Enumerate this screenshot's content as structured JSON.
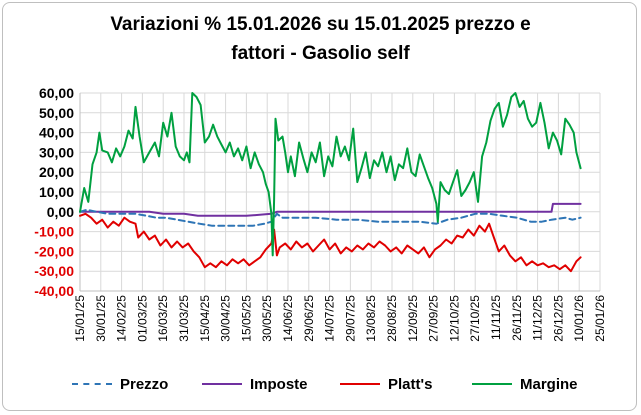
{
  "chart_data": {
    "type": "line",
    "title_line1": "Variazioni % 15.01.2026 su 15.01.2025 prezzo e",
    "title_line2": "fattori - Gasolio self",
    "yticks": [
      "60,00",
      "50,00",
      "40,00",
      "30,00",
      "20,00",
      "10,00",
      "0,00",
      "-10,00",
      "-20,00",
      "-30,00",
      "-40,00"
    ],
    "ylim": [
      -40,
      60
    ],
    "xticks": [
      "15/01/25",
      "30/01/25",
      "14/02/25",
      "01/03/25",
      "16/03/25",
      "31/03/25",
      "15/04/25",
      "30/04/25",
      "15/05/25",
      "30/05/25",
      "14/06/25",
      "29/06/25",
      "14/07/25",
      "29/07/25",
      "13/08/25",
      "28/08/25",
      "12/09/25",
      "27/09/25",
      "12/10/25",
      "27/10/25",
      "11/11/25",
      "26/11/25",
      "11/12/25",
      "26/12/25",
      "10/01/26",
      "25/01/26"
    ],
    "x_range_days": [
      0,
      375
    ],
    "grid": true,
    "series": [
      {
        "name": "Prezzo",
        "color": "#2e75b6",
        "style": "dashed",
        "points": [
          [
            0,
            0
          ],
          [
            5,
            1
          ],
          [
            12,
            0
          ],
          [
            20,
            -1
          ],
          [
            30,
            -1
          ],
          [
            40,
            -1
          ],
          [
            48,
            -2
          ],
          [
            55,
            -3
          ],
          [
            62,
            -3
          ],
          [
            70,
            -4
          ],
          [
            78,
            -5
          ],
          [
            86,
            -6
          ],
          [
            95,
            -7
          ],
          [
            105,
            -7
          ],
          [
            115,
            -7
          ],
          [
            125,
            -7
          ],
          [
            133,
            -6
          ],
          [
            138,
            -5
          ],
          [
            142,
            -1
          ],
          [
            146,
            -3
          ],
          [
            155,
            -3
          ],
          [
            170,
            -3
          ],
          [
            185,
            -4
          ],
          [
            200,
            -4
          ],
          [
            215,
            -5
          ],
          [
            230,
            -5
          ],
          [
            245,
            -5
          ],
          [
            257,
            -6
          ],
          [
            265,
            -4
          ],
          [
            275,
            -3
          ],
          [
            285,
            -1
          ],
          [
            295,
            -1
          ],
          [
            305,
            -2
          ],
          [
            315,
            -3
          ],
          [
            325,
            -5
          ],
          [
            333,
            -5
          ],
          [
            340,
            -4
          ],
          [
            350,
            -3
          ],
          [
            355,
            -4
          ],
          [
            361,
            -3
          ]
        ]
      },
      {
        "name": "Imposte",
        "color": "#7030a0",
        "style": "solid",
        "points": [
          [
            0,
            0
          ],
          [
            30,
            0
          ],
          [
            50,
            0
          ],
          [
            60,
            -1
          ],
          [
            75,
            -1
          ],
          [
            85,
            -2
          ],
          [
            100,
            -2
          ],
          [
            120,
            -2
          ],
          [
            138,
            -1
          ],
          [
            142,
            0
          ],
          [
            180,
            0
          ],
          [
            220,
            0
          ],
          [
            260,
            0
          ],
          [
            290,
            0
          ],
          [
            310,
            0
          ],
          [
            330,
            0
          ],
          [
            340,
            0
          ],
          [
            341,
            4
          ],
          [
            355,
            4
          ],
          [
            361,
            4
          ]
        ]
      },
      {
        "name": "Platt's",
        "color": "#e00000",
        "style": "solid",
        "points": [
          [
            0,
            -2
          ],
          [
            4,
            -1
          ],
          [
            8,
            -3
          ],
          [
            12,
            -6
          ],
          [
            16,
            -4
          ],
          [
            20,
            -8
          ],
          [
            24,
            -5
          ],
          [
            28,
            -7
          ],
          [
            32,
            -3
          ],
          [
            36,
            -5
          ],
          [
            40,
            -6
          ],
          [
            42,
            -13
          ],
          [
            46,
            -10
          ],
          [
            50,
            -14
          ],
          [
            54,
            -12
          ],
          [
            58,
            -17
          ],
          [
            62,
            -14
          ],
          [
            66,
            -18
          ],
          [
            70,
            -15
          ],
          [
            74,
            -18
          ],
          [
            78,
            -16
          ],
          [
            82,
            -20
          ],
          [
            86,
            -23
          ],
          [
            90,
            -28
          ],
          [
            94,
            -26
          ],
          [
            98,
            -28
          ],
          [
            102,
            -25
          ],
          [
            106,
            -27
          ],
          [
            110,
            -24
          ],
          [
            114,
            -26
          ],
          [
            118,
            -24
          ],
          [
            122,
            -27
          ],
          [
            126,
            -25
          ],
          [
            130,
            -23
          ],
          [
            134,
            -19
          ],
          [
            138,
            -16
          ],
          [
            140,
            -9
          ],
          [
            142,
            -22
          ],
          [
            144,
            -18
          ],
          [
            148,
            -16
          ],
          [
            152,
            -19
          ],
          [
            156,
            -15
          ],
          [
            160,
            -18
          ],
          [
            164,
            -16
          ],
          [
            168,
            -20
          ],
          [
            172,
            -17
          ],
          [
            176,
            -14
          ],
          [
            180,
            -19
          ],
          [
            184,
            -16
          ],
          [
            188,
            -21
          ],
          [
            192,
            -18
          ],
          [
            196,
            -20
          ],
          [
            200,
            -17
          ],
          [
            204,
            -19
          ],
          [
            208,
            -16
          ],
          [
            212,
            -18
          ],
          [
            216,
            -15
          ],
          [
            220,
            -17
          ],
          [
            224,
            -20
          ],
          [
            228,
            -18
          ],
          [
            232,
            -21
          ],
          [
            236,
            -17
          ],
          [
            240,
            -19
          ],
          [
            244,
            -21
          ],
          [
            248,
            -18
          ],
          [
            252,
            -23
          ],
          [
            256,
            -19
          ],
          [
            260,
            -17
          ],
          [
            264,
            -14
          ],
          [
            268,
            -16
          ],
          [
            272,
            -12
          ],
          [
            276,
            -13
          ],
          [
            280,
            -9
          ],
          [
            284,
            -12
          ],
          [
            288,
            -7
          ],
          [
            292,
            -10
          ],
          [
            295,
            -6
          ],
          [
            298,
            -12
          ],
          [
            302,
            -20
          ],
          [
            306,
            -17
          ],
          [
            310,
            -22
          ],
          [
            314,
            -25
          ],
          [
            318,
            -23
          ],
          [
            322,
            -27
          ],
          [
            326,
            -25
          ],
          [
            330,
            -27
          ],
          [
            334,
            -26
          ],
          [
            338,
            -28
          ],
          [
            342,
            -27
          ],
          [
            346,
            -29
          ],
          [
            350,
            -27
          ],
          [
            354,
            -30
          ],
          [
            358,
            -25
          ],
          [
            361,
            -23
          ]
        ]
      },
      {
        "name": "Margine",
        "color": "#00a040",
        "style": "solid",
        "points": [
          [
            0,
            0
          ],
          [
            3,
            12
          ],
          [
            6,
            5
          ],
          [
            9,
            24
          ],
          [
            12,
            30
          ],
          [
            14,
            40
          ],
          [
            16,
            31
          ],
          [
            20,
            30
          ],
          [
            23,
            25
          ],
          [
            26,
            32
          ],
          [
            29,
            28
          ],
          [
            32,
            33
          ],
          [
            35,
            41
          ],
          [
            38,
            37
          ],
          [
            40,
            53
          ],
          [
            43,
            38
          ],
          [
            46,
            25
          ],
          [
            50,
            30
          ],
          [
            54,
            35
          ],
          [
            57,
            28
          ],
          [
            60,
            45
          ],
          [
            63,
            38
          ],
          [
            66,
            50
          ],
          [
            69,
            33
          ],
          [
            72,
            28
          ],
          [
            75,
            26
          ],
          [
            77,
            30
          ],
          [
            79,
            25
          ],
          [
            81,
            60
          ],
          [
            84,
            58
          ],
          [
            87,
            54
          ],
          [
            90,
            35
          ],
          [
            93,
            38
          ],
          [
            96,
            44
          ],
          [
            99,
            38
          ],
          [
            102,
            34
          ],
          [
            105,
            30
          ],
          [
            108,
            35
          ],
          [
            111,
            28
          ],
          [
            114,
            32
          ],
          [
            117,
            26
          ],
          [
            120,
            33
          ],
          [
            123,
            22
          ],
          [
            126,
            30
          ],
          [
            129,
            24
          ],
          [
            132,
            20
          ],
          [
            134,
            14
          ],
          [
            136,
            10
          ],
          [
            138,
            -1
          ],
          [
            139,
            -22
          ],
          [
            140,
            6
          ],
          [
            141,
            47
          ],
          [
            143,
            36
          ],
          [
            146,
            38
          ],
          [
            148,
            30
          ],
          [
            150,
            20
          ],
          [
            152,
            28
          ],
          [
            155,
            18
          ],
          [
            158,
            35
          ],
          [
            161,
            27
          ],
          [
            164,
            20
          ],
          [
            167,
            30
          ],
          [
            170,
            25
          ],
          [
            173,
            35
          ],
          [
            176,
            18
          ],
          [
            179,
            28
          ],
          [
            182,
            23
          ],
          [
            185,
            38
          ],
          [
            188,
            28
          ],
          [
            191,
            33
          ],
          [
            194,
            26
          ],
          [
            197,
            42
          ],
          [
            200,
            15
          ],
          [
            203,
            22
          ],
          [
            206,
            30
          ],
          [
            209,
            17
          ],
          [
            212,
            26
          ],
          [
            215,
            23
          ],
          [
            218,
            30
          ],
          [
            221,
            20
          ],
          [
            224,
            28
          ],
          [
            227,
            16
          ],
          [
            230,
            24
          ],
          [
            233,
            22
          ],
          [
            236,
            32
          ],
          [
            239,
            20
          ],
          [
            242,
            18
          ],
          [
            245,
            29
          ],
          [
            248,
            23
          ],
          [
            251,
            17
          ],
          [
            254,
            12
          ],
          [
            257,
            4
          ],
          [
            258,
            -5
          ],
          [
            260,
            15
          ],
          [
            263,
            11
          ],
          [
            266,
            9
          ],
          [
            269,
            15
          ],
          [
            272,
            21
          ],
          [
            275,
            8
          ],
          [
            278,
            11
          ],
          [
            281,
            15
          ],
          [
            284,
            20
          ],
          [
            287,
            5
          ],
          [
            290,
            28
          ],
          [
            293,
            35
          ],
          [
            296,
            46
          ],
          [
            299,
            52
          ],
          [
            302,
            55
          ],
          [
            305,
            43
          ],
          [
            308,
            49
          ],
          [
            311,
            58
          ],
          [
            314,
            60
          ],
          [
            317,
            53
          ],
          [
            320,
            56
          ],
          [
            323,
            47
          ],
          [
            326,
            43
          ],
          [
            329,
            45
          ],
          [
            332,
            55
          ],
          [
            335,
            45
          ],
          [
            338,
            32
          ],
          [
            341,
            40
          ],
          [
            344,
            36
          ],
          [
            347,
            29
          ],
          [
            350,
            47
          ],
          [
            353,
            44
          ],
          [
            356,
            40
          ],
          [
            358,
            30
          ],
          [
            361,
            22
          ]
        ]
      }
    ]
  },
  "legend": {
    "prezzo": "Prezzo",
    "imposte": "Imposte",
    "platts": "Platt's",
    "margine": "Margine"
  },
  "colors": {
    "ytick_positive": "#000000",
    "ytick_negative": "#e00000",
    "grid": "#d9d9d9"
  }
}
